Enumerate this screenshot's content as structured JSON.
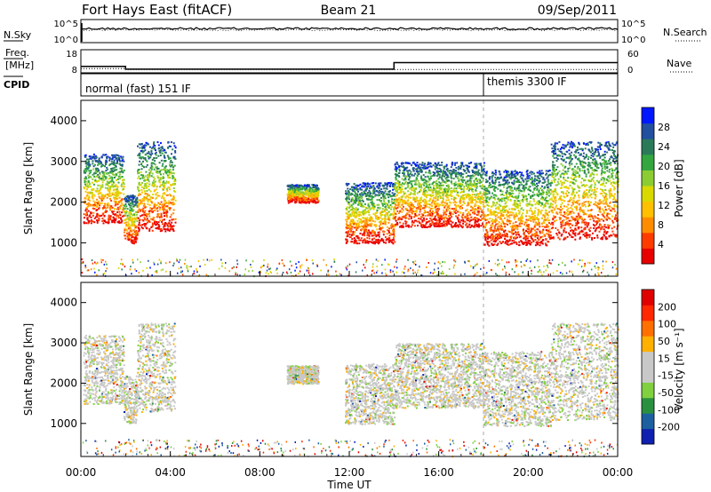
{
  "header": {
    "title": "Fort Hays East (fitACF)",
    "beam": "Beam 21",
    "date": "09/Sep/2011"
  },
  "nsky_panel": {
    "left_label": "N.Sky",
    "right_label": "N.Search",
    "left_ticks": [
      "10^5",
      "10^0"
    ],
    "right_ticks": [
      "10^5",
      "10^0"
    ]
  },
  "freq_panel": {
    "left_label_line1": "Freq.",
    "left_label_line2": "[MHz]",
    "right_label": "Nave",
    "left_ticks": [
      18,
      8
    ],
    "right_ticks": [
      60,
      0
    ],
    "freq_steps": [
      [
        0,
        10.5
      ],
      [
        2.0,
        10.5
      ],
      [
        2.0,
        9.0
      ],
      [
        14.0,
        9.0
      ],
      [
        14.0,
        12.5
      ],
      [
        24,
        12.5
      ]
    ],
    "nave_steps": [
      [
        0,
        8
      ],
      [
        2.0,
        8
      ],
      [
        2.0,
        5
      ],
      [
        24,
        5
      ]
    ]
  },
  "cpid_panel": {
    "label": "CPID",
    "modes": [
      {
        "start_hour": 0,
        "text": "normal (fast) 151 IF"
      },
      {
        "start_hour": 18,
        "text": "themis 3300 IF"
      }
    ]
  },
  "chart_data": [
    {
      "type": "heatmap",
      "name": "power",
      "ylabel": "Slant Range [km]",
      "ylim": [
        180,
        4500
      ],
      "yticks": [
        1000,
        2000,
        3000,
        4000
      ],
      "xlim_hours": [
        0,
        24
      ],
      "colorbar": {
        "label": "Power [dB]",
        "ticks": [
          "28",
          "24",
          "20",
          "16",
          "12",
          "8",
          "4"
        ],
        "colors": [
          "#e80000",
          "#ff3c00",
          "#ff8c00",
          "#ffc000",
          "#d9d900",
          "#8ccc33",
          "#33a640",
          "#2a7a5a",
          "#224f9e",
          "#0018ff"
        ]
      },
      "echo_bands": [
        {
          "t0": 0.1,
          "t1": 1.9,
          "r0": 1500,
          "r1": 3200
        },
        {
          "t0": 1.9,
          "t1": 2.5,
          "r0": 1000,
          "r1": 2200
        },
        {
          "t0": 2.5,
          "t1": 4.2,
          "r0": 1300,
          "r1": 3500
        },
        {
          "t0": 9.2,
          "t1": 10.6,
          "r0": 2000,
          "r1": 2450
        },
        {
          "t0": 11.8,
          "t1": 14.0,
          "r0": 1000,
          "r1": 2500
        },
        {
          "t0": 14.0,
          "t1": 18.0,
          "r0": 1400,
          "r1": 3000
        },
        {
          "t0": 18.0,
          "t1": 21.0,
          "r0": 950,
          "r1": 2800
        },
        {
          "t0": 21.0,
          "t1": 24.0,
          "r0": 1100,
          "r1": 3500
        }
      ]
    },
    {
      "type": "heatmap",
      "name": "velocity",
      "ylabel": "Slant Range [km]",
      "ylim": [
        180,
        4500
      ],
      "yticks": [
        1000,
        2000,
        3000,
        4000
      ],
      "xlim_hours": [
        0,
        24
      ],
      "colorbar": {
        "label": "Velocity [m s⁻¹]",
        "ticks": [
          "200",
          "100",
          "50",
          "15",
          "-15",
          "-50",
          "-100",
          "-200"
        ],
        "colors": [
          "#1020b0",
          "#1d60a0",
          "#2a9040",
          "#80d040",
          "#c8c8c8",
          "#c8c8c8",
          "#ffb000",
          "#ff7000",
          "#ff2800",
          "#e00000"
        ]
      },
      "echo_bands": [
        {
          "t0": 0.1,
          "t1": 1.9,
          "r0": 1500,
          "r1": 3200
        },
        {
          "t0": 1.9,
          "t1": 2.5,
          "r0": 1000,
          "r1": 2200
        },
        {
          "t0": 2.5,
          "t1": 4.2,
          "r0": 1300,
          "r1": 3500
        },
        {
          "t0": 9.2,
          "t1": 10.6,
          "r0": 2000,
          "r1": 2450
        },
        {
          "t0": 11.8,
          "t1": 14.0,
          "r0": 1000,
          "r1": 2500
        },
        {
          "t0": 14.0,
          "t1": 18.0,
          "r0": 1400,
          "r1": 3000
        },
        {
          "t0": 18.0,
          "t1": 21.0,
          "r0": 950,
          "r1": 2800
        },
        {
          "t0": 21.0,
          "t1": 24.0,
          "r0": 1100,
          "r1": 3500
        }
      ]
    }
  ],
  "x_axis": {
    "label": "Time UT",
    "tick_labels": [
      "00:00",
      "04:00",
      "08:00",
      "12:00",
      "16:00",
      "20:00",
      "00:00"
    ],
    "tick_hours": [
      0,
      4,
      8,
      12,
      16,
      20,
      24
    ]
  }
}
